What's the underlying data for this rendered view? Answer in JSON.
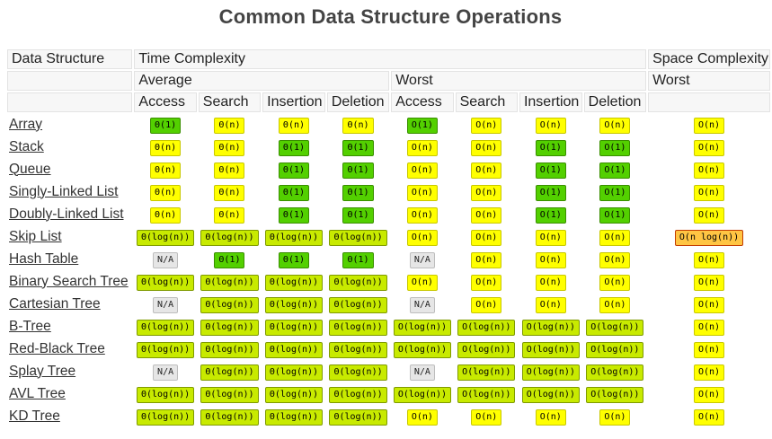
{
  "title": "Common Data Structure Operations",
  "headers": {
    "data_structure": "Data Structure",
    "time_complexity": "Time Complexity",
    "space_complexity": "Space Complexity",
    "average": "Average",
    "worst": "Worst",
    "space_worst": "Worst",
    "ops": [
      "Access",
      "Search",
      "Insertion",
      "Deletion",
      "Access",
      "Search",
      "Insertion",
      "Deletion"
    ]
  },
  "legend_colors": {
    "g": "#53d000",
    "lg": "#c8ea00",
    "y": "#ffff00",
    "o": "#ffc543",
    "na": "#e6e6e6"
  },
  "rows": [
    {
      "name": "Array",
      "cells": [
        [
          "Θ(1)",
          "g"
        ],
        [
          "Θ(n)",
          "y"
        ],
        [
          "Θ(n)",
          "y"
        ],
        [
          "Θ(n)",
          "y"
        ],
        [
          "O(1)",
          "g"
        ],
        [
          "O(n)",
          "y"
        ],
        [
          "O(n)",
          "y"
        ],
        [
          "O(n)",
          "y"
        ],
        [
          "O(n)",
          "y"
        ]
      ]
    },
    {
      "name": "Stack",
      "cells": [
        [
          "Θ(n)",
          "y"
        ],
        [
          "Θ(n)",
          "y"
        ],
        [
          "Θ(1)",
          "g"
        ],
        [
          "Θ(1)",
          "g"
        ],
        [
          "O(n)",
          "y"
        ],
        [
          "O(n)",
          "y"
        ],
        [
          "O(1)",
          "g"
        ],
        [
          "O(1)",
          "g"
        ],
        [
          "O(n)",
          "y"
        ]
      ]
    },
    {
      "name": "Queue",
      "cells": [
        [
          "Θ(n)",
          "y"
        ],
        [
          "Θ(n)",
          "y"
        ],
        [
          "Θ(1)",
          "g"
        ],
        [
          "Θ(1)",
          "g"
        ],
        [
          "O(n)",
          "y"
        ],
        [
          "O(n)",
          "y"
        ],
        [
          "O(1)",
          "g"
        ],
        [
          "O(1)",
          "g"
        ],
        [
          "O(n)",
          "y"
        ]
      ]
    },
    {
      "name": "Singly-Linked List",
      "cells": [
        [
          "Θ(n)",
          "y"
        ],
        [
          "Θ(n)",
          "y"
        ],
        [
          "Θ(1)",
          "g"
        ],
        [
          "Θ(1)",
          "g"
        ],
        [
          "O(n)",
          "y"
        ],
        [
          "O(n)",
          "y"
        ],
        [
          "O(1)",
          "g"
        ],
        [
          "O(1)",
          "g"
        ],
        [
          "O(n)",
          "y"
        ]
      ]
    },
    {
      "name": "Doubly-Linked List",
      "cells": [
        [
          "Θ(n)",
          "y"
        ],
        [
          "Θ(n)",
          "y"
        ],
        [
          "Θ(1)",
          "g"
        ],
        [
          "Θ(1)",
          "g"
        ],
        [
          "O(n)",
          "y"
        ],
        [
          "O(n)",
          "y"
        ],
        [
          "O(1)",
          "g"
        ],
        [
          "O(1)",
          "g"
        ],
        [
          "O(n)",
          "y"
        ]
      ]
    },
    {
      "name": "Skip List",
      "cells": [
        [
          "Θ(log(n))",
          "lg"
        ],
        [
          "Θ(log(n))",
          "lg"
        ],
        [
          "Θ(log(n))",
          "lg"
        ],
        [
          "Θ(log(n))",
          "lg"
        ],
        [
          "O(n)",
          "y"
        ],
        [
          "O(n)",
          "y"
        ],
        [
          "O(n)",
          "y"
        ],
        [
          "O(n)",
          "y"
        ],
        [
          "O(n log(n))",
          "o"
        ]
      ]
    },
    {
      "name": "Hash Table",
      "cells": [
        [
          "N/A",
          "na"
        ],
        [
          "Θ(1)",
          "g"
        ],
        [
          "Θ(1)",
          "g"
        ],
        [
          "Θ(1)",
          "g"
        ],
        [
          "N/A",
          "na"
        ],
        [
          "O(n)",
          "y"
        ],
        [
          "O(n)",
          "y"
        ],
        [
          "O(n)",
          "y"
        ],
        [
          "O(n)",
          "y"
        ]
      ]
    },
    {
      "name": "Binary Search Tree",
      "cells": [
        [
          "Θ(log(n))",
          "lg"
        ],
        [
          "Θ(log(n))",
          "lg"
        ],
        [
          "Θ(log(n))",
          "lg"
        ],
        [
          "Θ(log(n))",
          "lg"
        ],
        [
          "O(n)",
          "y"
        ],
        [
          "O(n)",
          "y"
        ],
        [
          "O(n)",
          "y"
        ],
        [
          "O(n)",
          "y"
        ],
        [
          "O(n)",
          "y"
        ]
      ]
    },
    {
      "name": "Cartesian Tree",
      "cells": [
        [
          "N/A",
          "na"
        ],
        [
          "Θ(log(n))",
          "lg"
        ],
        [
          "Θ(log(n))",
          "lg"
        ],
        [
          "Θ(log(n))",
          "lg"
        ],
        [
          "N/A",
          "na"
        ],
        [
          "O(n)",
          "y"
        ],
        [
          "O(n)",
          "y"
        ],
        [
          "O(n)",
          "y"
        ],
        [
          "O(n)",
          "y"
        ]
      ]
    },
    {
      "name": "B-Tree",
      "cells": [
        [
          "Θ(log(n))",
          "lg"
        ],
        [
          "Θ(log(n))",
          "lg"
        ],
        [
          "Θ(log(n))",
          "lg"
        ],
        [
          "Θ(log(n))",
          "lg"
        ],
        [
          "O(log(n))",
          "lg"
        ],
        [
          "O(log(n))",
          "lg"
        ],
        [
          "O(log(n))",
          "lg"
        ],
        [
          "O(log(n))",
          "lg"
        ],
        [
          "O(n)",
          "y"
        ]
      ]
    },
    {
      "name": "Red-Black Tree",
      "cells": [
        [
          "Θ(log(n))",
          "lg"
        ],
        [
          "Θ(log(n))",
          "lg"
        ],
        [
          "Θ(log(n))",
          "lg"
        ],
        [
          "Θ(log(n))",
          "lg"
        ],
        [
          "O(log(n))",
          "lg"
        ],
        [
          "O(log(n))",
          "lg"
        ],
        [
          "O(log(n))",
          "lg"
        ],
        [
          "O(log(n))",
          "lg"
        ],
        [
          "O(n)",
          "y"
        ]
      ]
    },
    {
      "name": "Splay Tree",
      "cells": [
        [
          "N/A",
          "na"
        ],
        [
          "Θ(log(n))",
          "lg"
        ],
        [
          "Θ(log(n))",
          "lg"
        ],
        [
          "Θ(log(n))",
          "lg"
        ],
        [
          "N/A",
          "na"
        ],
        [
          "O(log(n))",
          "lg"
        ],
        [
          "O(log(n))",
          "lg"
        ],
        [
          "O(log(n))",
          "lg"
        ],
        [
          "O(n)",
          "y"
        ]
      ]
    },
    {
      "name": "AVL Tree",
      "cells": [
        [
          "Θ(log(n))",
          "lg"
        ],
        [
          "Θ(log(n))",
          "lg"
        ],
        [
          "Θ(log(n))",
          "lg"
        ],
        [
          "Θ(log(n))",
          "lg"
        ],
        [
          "O(log(n))",
          "lg"
        ],
        [
          "O(log(n))",
          "lg"
        ],
        [
          "O(log(n))",
          "lg"
        ],
        [
          "O(log(n))",
          "lg"
        ],
        [
          "O(n)",
          "y"
        ]
      ]
    },
    {
      "name": "KD Tree",
      "cells": [
        [
          "Θ(log(n))",
          "lg"
        ],
        [
          "Θ(log(n))",
          "lg"
        ],
        [
          "Θ(log(n))",
          "lg"
        ],
        [
          "Θ(log(n))",
          "lg"
        ],
        [
          "O(n)",
          "y"
        ],
        [
          "O(n)",
          "y"
        ],
        [
          "O(n)",
          "y"
        ],
        [
          "O(n)",
          "y"
        ],
        [
          "O(n)",
          "y"
        ]
      ]
    }
  ]
}
